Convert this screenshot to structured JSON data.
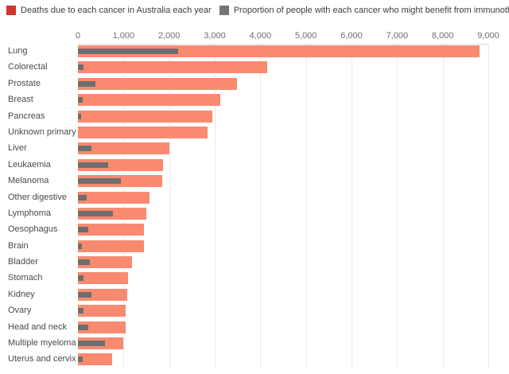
{
  "legend": {
    "items": [
      {
        "label": "Deaths due to each cancer in Australia each year",
        "swatch_color": "#d0342c"
      },
      {
        "label": "Proportion of people with each cancer who might benefit from immunotherapy",
        "swatch_color": "#757575"
      }
    ]
  },
  "colors": {
    "deaths_bar": "#f98a70",
    "immunotherapy_bar": "#6e6e6e",
    "gridline": "#e9e9e9",
    "axis_text": "#6e6e6e",
    "label_text": "#4a4a4a"
  },
  "chart_data": {
    "type": "bar",
    "orientation": "horizontal",
    "title": "",
    "xlabel": "",
    "ylabel": "",
    "xlim": [
      0,
      9000
    ],
    "x_ticks": [
      0,
      1000,
      2000,
      3000,
      4000,
      5000,
      6000,
      7000,
      8000,
      9000
    ],
    "x_tick_labels": [
      "0",
      "1,000",
      "2,000",
      "3,000",
      "4,000",
      "5,000",
      "6,000",
      "7,000",
      "8,000",
      "9,000"
    ],
    "grid": true,
    "legend_position": "top",
    "categories": [
      "Lung",
      "Colorectal",
      "Prostate",
      "Breast",
      "Pancreas",
      "Unknown primary",
      "Liver",
      "Leukaemia",
      "Melanoma",
      "Other digestive",
      "Lymphoma",
      "Oesophagus",
      "Brain",
      "Bladder",
      "Stomach",
      "Kidney",
      "Ovary",
      "Head and neck",
      "Multiple myeloma",
      "Uterus and cervix"
    ],
    "series": [
      {
        "name": "Deaths due to each cancer in Australia each year",
        "color": "#f98a70",
        "values": [
          8800,
          4150,
          3480,
          3130,
          2950,
          2850,
          2000,
          1860,
          1850,
          1570,
          1500,
          1450,
          1440,
          1190,
          1100,
          1080,
          1050,
          1040,
          1000,
          750
        ]
      },
      {
        "name": "Proportion of people with each cancer who might benefit from immunotherapy",
        "color": "#6e6e6e",
        "values": [
          2200,
          130,
          380,
          100,
          75,
          0,
          300,
          670,
          940,
          200,
          770,
          230,
          90,
          260,
          130,
          290,
          120,
          220,
          600,
          110
        ]
      }
    ]
  }
}
